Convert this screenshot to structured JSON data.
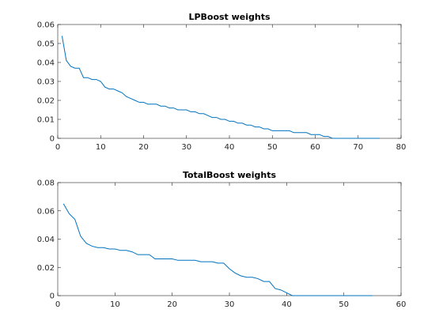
{
  "chart_data": [
    {
      "type": "line",
      "title": "LPBoost weights",
      "xlabel": "",
      "ylabel": "",
      "xlim": [
        0,
        80
      ],
      "ylim": [
        0,
        0.06
      ],
      "xticks": [
        0,
        10,
        20,
        30,
        40,
        50,
        60,
        70,
        80
      ],
      "yticks": [
        0,
        0.01,
        0.02,
        0.03,
        0.04,
        0.05,
        0.06
      ],
      "xtick_labels": [
        "0",
        "10",
        "20",
        "30",
        "40",
        "50",
        "60",
        "70",
        "80"
      ],
      "ytick_labels": [
        "0",
        "0.01",
        "0.02",
        "0.03",
        "0.04",
        "0.05",
        "0.06"
      ],
      "grid": false,
      "line_color": "#0072bd",
      "series": [
        {
          "x": [
            1,
            2,
            3,
            4,
            5,
            6,
            7,
            8,
            9,
            10,
            11,
            12,
            13,
            14,
            15,
            16,
            17,
            18,
            19,
            20,
            21,
            22,
            23,
            24,
            25,
            26,
            27,
            28,
            29,
            30,
            31,
            32,
            33,
            34,
            35,
            36,
            37,
            38,
            39,
            40,
            41,
            42,
            43,
            44,
            45,
            46,
            47,
            48,
            49,
            50,
            51,
            52,
            53,
            54,
            55,
            56,
            57,
            58,
            59,
            60,
            61,
            62,
            63,
            64,
            65,
            66,
            67,
            68,
            69,
            70,
            71,
            72,
            73,
            74,
            75
          ],
          "values": [
            0.054,
            0.041,
            0.038,
            0.037,
            0.037,
            0.032,
            0.032,
            0.031,
            0.031,
            0.03,
            0.027,
            0.026,
            0.026,
            0.025,
            0.024,
            0.022,
            0.021,
            0.02,
            0.019,
            0.019,
            0.018,
            0.018,
            0.018,
            0.017,
            0.017,
            0.016,
            0.016,
            0.015,
            0.015,
            0.015,
            0.014,
            0.014,
            0.013,
            0.013,
            0.012,
            0.011,
            0.011,
            0.01,
            0.01,
            0.009,
            0.009,
            0.008,
            0.008,
            0.007,
            0.007,
            0.006,
            0.006,
            0.005,
            0.005,
            0.004,
            0.004,
            0.004,
            0.004,
            0.004,
            0.003,
            0.003,
            0.003,
            0.003,
            0.002,
            0.002,
            0.002,
            0.001,
            0.001,
            0.0,
            0.0,
            0.0,
            0.0,
            0.0,
            0.0,
            0.0,
            0.0,
            0.0,
            0.0,
            0.0,
            0.0
          ]
        }
      ]
    },
    {
      "type": "line",
      "title": "TotalBoost weights",
      "xlabel": "",
      "ylabel": "",
      "xlim": [
        0,
        60
      ],
      "ylim": [
        0,
        0.08
      ],
      "xticks": [
        0,
        10,
        20,
        30,
        40,
        50,
        60
      ],
      "yticks": [
        0,
        0.02,
        0.04,
        0.06,
        0.08
      ],
      "xtick_labels": [
        "0",
        "10",
        "20",
        "30",
        "40",
        "50",
        "60"
      ],
      "ytick_labels": [
        "0",
        "0.02",
        "0.04",
        "0.06",
        "0.08"
      ],
      "grid": false,
      "line_color": "#0072bd",
      "series": [
        {
          "x": [
            1,
            2,
            3,
            4,
            5,
            6,
            7,
            8,
            9,
            10,
            11,
            12,
            13,
            14,
            15,
            16,
            17,
            18,
            19,
            20,
            21,
            22,
            23,
            24,
            25,
            26,
            27,
            28,
            29,
            30,
            31,
            32,
            33,
            34,
            35,
            36,
            37,
            38,
            39,
            40,
            41,
            42,
            43,
            44,
            45,
            46,
            47,
            48,
            49,
            50,
            51,
            52,
            53,
            54,
            55
          ],
          "values": [
            0.065,
            0.058,
            0.054,
            0.042,
            0.037,
            0.035,
            0.034,
            0.034,
            0.033,
            0.033,
            0.032,
            0.032,
            0.031,
            0.029,
            0.029,
            0.029,
            0.026,
            0.026,
            0.026,
            0.026,
            0.025,
            0.025,
            0.025,
            0.025,
            0.024,
            0.024,
            0.024,
            0.023,
            0.023,
            0.019,
            0.016,
            0.014,
            0.013,
            0.013,
            0.012,
            0.01,
            0.01,
            0.005,
            0.004,
            0.002,
            0.0,
            0.0,
            0.0,
            0.0,
            0.0,
            0.0,
            0.0,
            0.0,
            0.0,
            0.0,
            0.0,
            0.0,
            0.0,
            0.0,
            0.0
          ]
        }
      ]
    }
  ]
}
